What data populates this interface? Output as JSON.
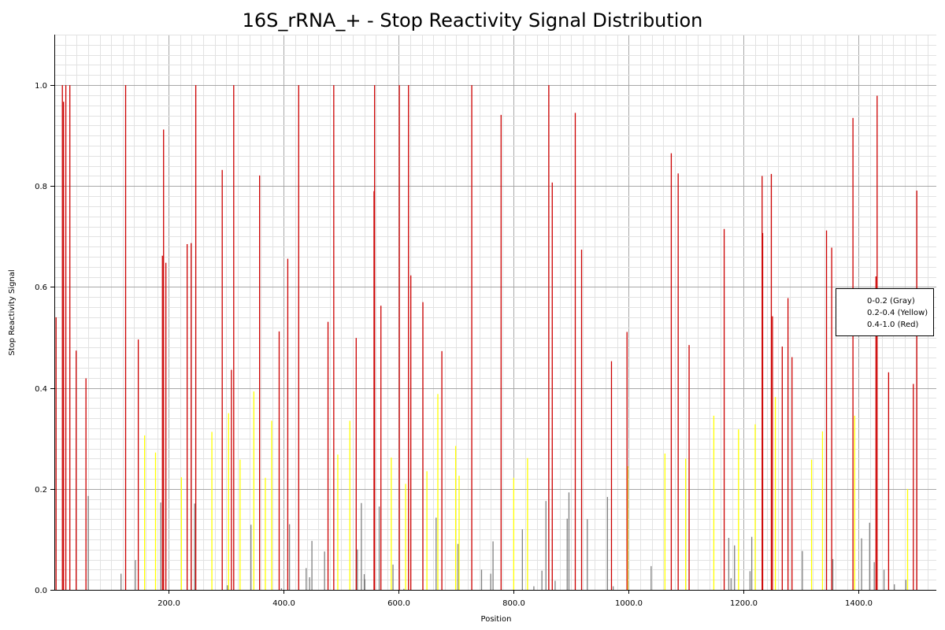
{
  "chart_data": {
    "type": "bar",
    "title": "16S_rRNA_+ - Stop Reactivity Signal Distribution",
    "xlabel": "Position",
    "ylabel": "Stop Reactivity Signal",
    "xlim": [
      1,
      1535
    ],
    "ylim": [
      0,
      1.1
    ],
    "x_ticks": [
      200,
      400,
      600,
      800,
      1000,
      1200,
      1400
    ],
    "x_tick_labels": [
      "200.0",
      "400.0",
      "600.0",
      "800.0",
      "1000.0",
      "1200.0",
      "1400.0"
    ],
    "y_ticks": [
      0,
      0.2,
      0.4,
      0.6,
      0.8,
      1.0
    ],
    "y_tick_labels": [
      "0.0",
      "0.2",
      "0.4",
      "0.6",
      "0.8",
      "1.0"
    ],
    "grid": true,
    "legend_position": "right",
    "series": [
      {
        "name": "0-0.2 (Gray)",
        "color": "#808080",
        "x": [
          60,
          117,
          142,
          186,
          245,
          302,
          343,
          396,
          410,
          439,
          445,
          449,
          471,
          528,
          535,
          540,
          541,
          566,
          590,
          609,
          665,
          703,
          744,
          760,
          764,
          815,
          835,
          849,
          856,
          872,
          893,
          896,
          928,
          963,
          973,
          1039,
          1174,
          1178,
          1184,
          1211,
          1214,
          1302,
          1355,
          1405,
          1419,
          1427,
          1444,
          1462,
          1482
        ],
        "values": [
          0.186,
          0.032,
          0.059,
          0.173,
          0.171,
          0.009,
          0.129,
          0.003,
          0.13,
          0.043,
          0.025,
          0.097,
          0.076,
          0.08,
          0.172,
          0.031,
          0.021,
          0.165,
          0.05,
          0.002,
          0.143,
          0.091,
          0.04,
          0.032,
          0.096,
          0.12,
          0.007,
          0.038,
          0.176,
          0.018,
          0.141,
          0.193,
          0.14,
          0.184,
          0.007,
          0.047,
          0.103,
          0.023,
          0.088,
          0.037,
          0.105,
          0.077,
          0.061,
          0.102,
          0.133,
          0.055,
          0.04,
          0.011,
          0.02
        ]
      },
      {
        "name": "0.2-0.4 (Yellow)",
        "color": "#ffff00",
        "x": [
          158,
          177,
          222,
          275,
          304,
          324,
          348,
          368,
          379,
          494,
          515,
          587,
          612,
          649,
          668,
          699,
          705,
          800,
          824,
          998,
          1063,
          1099,
          1148,
          1191,
          1220,
          1255,
          1318,
          1337,
          1393,
          1485
        ],
        "values": [
          0.306,
          0.272,
          0.223,
          0.313,
          0.35,
          0.258,
          0.393,
          0.222,
          0.335,
          0.268,
          0.335,
          0.262,
          0.21,
          0.235,
          0.388,
          0.285,
          0.226,
          0.222,
          0.261,
          0.245,
          0.27,
          0.26,
          0.345,
          0.318,
          0.328,
          0.382,
          0.258,
          0.314,
          0.345,
          0.2
        ]
      },
      {
        "name": "0.4-1.0 (Red)",
        "color": "#cc0000",
        "x": [
          4,
          15,
          17,
          21,
          28,
          39,
          56,
          125,
          147,
          189,
          191,
          195,
          232,
          239,
          247,
          293,
          309,
          313,
          358,
          392,
          407,
          426,
          477,
          487,
          526,
          557,
          558,
          569,
          601,
          617,
          621,
          642,
          675,
          727,
          778,
          861,
          867,
          907,
          918,
          970,
          997,
          1074,
          1086,
          1105,
          1166,
          1232,
          1233,
          1248,
          1250,
          1267,
          1277,
          1284,
          1344,
          1353,
          1390,
          1430,
          1432,
          1452,
          1495,
          1501
        ],
        "values": [
          0.54,
          1.0,
          0.967,
          1.0,
          1.0,
          0.474,
          0.419,
          1.0,
          0.496,
          0.662,
          0.912,
          0.648,
          0.685,
          0.687,
          1.0,
          0.832,
          0.436,
          1.0,
          0.821,
          0.512,
          0.656,
          1.0,
          0.531,
          1.0,
          0.499,
          0.79,
          1.0,
          0.563,
          1.0,
          1.0,
          0.623,
          0.57,
          0.473,
          1.0,
          0.941,
          1.0,
          0.807,
          0.945,
          0.674,
          0.453,
          0.511,
          0.865,
          0.825,
          0.485,
          0.715,
          0.82,
          0.707,
          0.824,
          0.542,
          0.482,
          0.578,
          0.461,
          0.712,
          0.678,
          0.935,
          0.621,
          0.979,
          0.431,
          0.408,
          0.791
        ]
      }
    ]
  }
}
